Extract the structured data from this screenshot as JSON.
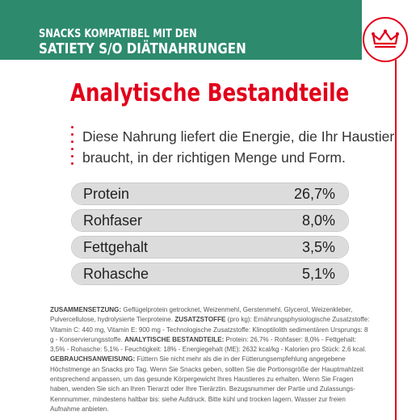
{
  "header": {
    "line1": "SNACKS KOMPATIBEL MIT DEN",
    "line2": "SATIETY S/O DIÄTNAHRUNGEN",
    "background_color": "#2d8a6c"
  },
  "brand": {
    "logo_icon": "crown-icon",
    "accent_color": "#e2001a"
  },
  "title": "Analytische Bestandteile",
  "intro": "Diese Nahrung liefert die Energie, die Ihr Haustier braucht, in der richtigen Menge und Form.",
  "nutrients": [
    {
      "label": "Protein",
      "value": "26,7%",
      "fill_fraction": 1.0
    },
    {
      "label": "Rohfaser",
      "value": "8,0%",
      "fill_fraction": 1.0
    },
    {
      "label": "Fettgehalt",
      "value": "3,5%",
      "fill_fraction": 1.0
    },
    {
      "label": "Rohasche",
      "value": "5,1%",
      "fill_fraction": 1.0
    }
  ],
  "fineprint": {
    "zusammensetzung_label": "ZUSAMMENSETZUNG:",
    "zusammensetzung_text": " Geflügelprotein getrocknet, Weizenmehl, Gerstenmehl, Glycerol, Weizenkleber, Pulvercellulose, hydrolysierte Tierproteine. ",
    "zusatzstoffe_label": "ZUSATZSTOFFE",
    "zusatzstoffe_text": " (pro kg): Ernährungsphysiologische Zusatzstoffe: Vitamin C: 440 mg, Vitamin E: 900 mg - Technologische Zusatzstoffe: Klinoptilolith sedimentären Ursprungs: 8 g - Konservierungsstoffe. ",
    "bestandteile_label": "ANALYTISCHE BESTANDTEILE:",
    "bestandteile_text": " Protein: 26,7% - Rohfaser: 8,0% - Fettgehalt: 3,5% - Rohasche: 5,1% - Feuchtigkeit: 18% - Energiegehalt (ME): 2632 kcal/kg - Kalorien pro Stück: 2,6 kcal. ",
    "gebrauch_label": "GEBRAUCHSANWEISUNG:",
    "gebrauch_text": " Füttern Sie nicht mehr als die in der Fütterungsempfehlung angegebene Höchstmenge an Snacks pro Tag. Wenn Sie Snacks geben, sollten Sie die Portionsgröße der Hauptmahlzeit entsprechend anpassen, um das gesunde Körpergewicht Ihres Haustieres zu erhalten. Wenn Sie Fragen haben, wenden Sie sich an Ihren Tierarzt oder Ihre Tierärztin. Bezugsnummer der Partie und Zulassungs-Kennnummer, mindestens haltbar bis: siehe Aufdruck. Bitte kühl und trocken lagern. Wasser zur freien Aufnahme anbieten."
  }
}
